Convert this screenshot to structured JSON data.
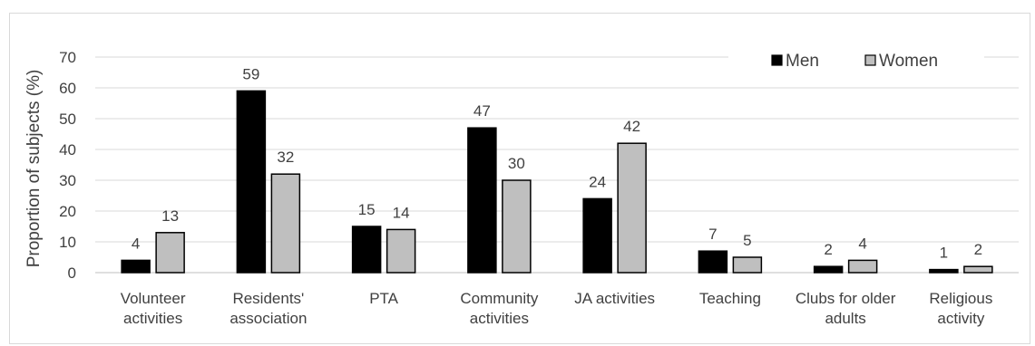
{
  "chart_data": {
    "type": "bar",
    "ylabel": "Proportion of subjects (%)",
    "xlabel": "",
    "ylim": [
      0,
      70
    ],
    "yticks": [
      0,
      10,
      20,
      30,
      40,
      50,
      60,
      70
    ],
    "grid": "horizontal",
    "legend_position": "top-right",
    "categories": [
      [
        "Volunteer",
        "activities"
      ],
      [
        "Residents'",
        "association"
      ],
      [
        "PTA"
      ],
      [
        "Community",
        "activities"
      ],
      [
        "JA activities"
      ],
      [
        "Teaching"
      ],
      [
        "Clubs for older",
        "adults"
      ],
      [
        "Religious",
        "activity"
      ]
    ],
    "series": [
      {
        "name": "Men",
        "color": "#000000",
        "values": [
          4,
          59,
          15,
          47,
          24,
          7,
          2,
          1
        ]
      },
      {
        "name": "Women",
        "color": "#bfbfbf",
        "values": [
          13,
          32,
          14,
          30,
          42,
          5,
          4,
          2
        ]
      }
    ],
    "data_labels": [
      [
        "4",
        "59",
        "15",
        "47",
        "24",
        "7",
        "2",
        "1"
      ],
      [
        "13",
        "32",
        "14",
        "30",
        "42",
        "5",
        "4",
        "2"
      ]
    ]
  }
}
